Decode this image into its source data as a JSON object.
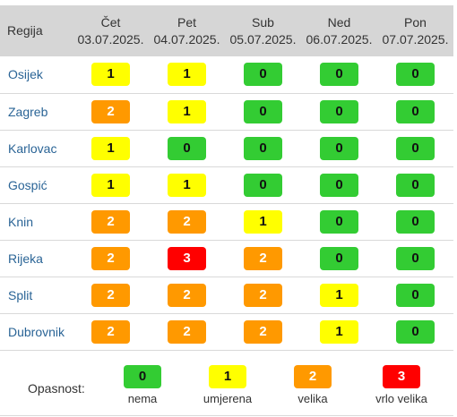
{
  "table": {
    "region_header": "Regija",
    "days": [
      {
        "day": "Čet",
        "date": "03.07.2025."
      },
      {
        "day": "Pet",
        "date": "04.07.2025."
      },
      {
        "day": "Sub",
        "date": "05.07.2025."
      },
      {
        "day": "Ned",
        "date": "06.07.2025."
      },
      {
        "day": "Pon",
        "date": "07.07.2025."
      }
    ],
    "rows": [
      {
        "region": "Osijek",
        "levels": [
          "1",
          "1",
          "0",
          "0",
          "0"
        ]
      },
      {
        "region": "Zagreb",
        "levels": [
          "2",
          "1",
          "0",
          "0",
          "0"
        ]
      },
      {
        "region": "Karlovac",
        "levels": [
          "1",
          "0",
          "0",
          "0",
          "0"
        ]
      },
      {
        "region": "Gospić",
        "levels": [
          "1",
          "1",
          "0",
          "0",
          "0"
        ]
      },
      {
        "region": "Knin",
        "levels": [
          "2",
          "2",
          "1",
          "0",
          "0"
        ]
      },
      {
        "region": "Rijeka",
        "levels": [
          "2",
          "3",
          "2",
          "0",
          "0"
        ]
      },
      {
        "region": "Split",
        "levels": [
          "2",
          "2",
          "2",
          "1",
          "0"
        ]
      },
      {
        "region": "Dubrovnik",
        "levels": [
          "2",
          "2",
          "2",
          "1",
          "0"
        ]
      }
    ]
  },
  "legend": {
    "label": "Opasnost:",
    "items": [
      {
        "level": "0",
        "text": "nema"
      },
      {
        "level": "1",
        "text": "umjerena"
      },
      {
        "level": "2",
        "text": "velika"
      },
      {
        "level": "3",
        "text": "vrlo velika"
      }
    ]
  },
  "colors": {
    "level_0": "#33cc33",
    "level_1": "#ffff00",
    "level_2": "#ff9900",
    "level_3": "#ff0000",
    "header_bg": "#d6d6d6",
    "region_link": "#2a6496"
  }
}
